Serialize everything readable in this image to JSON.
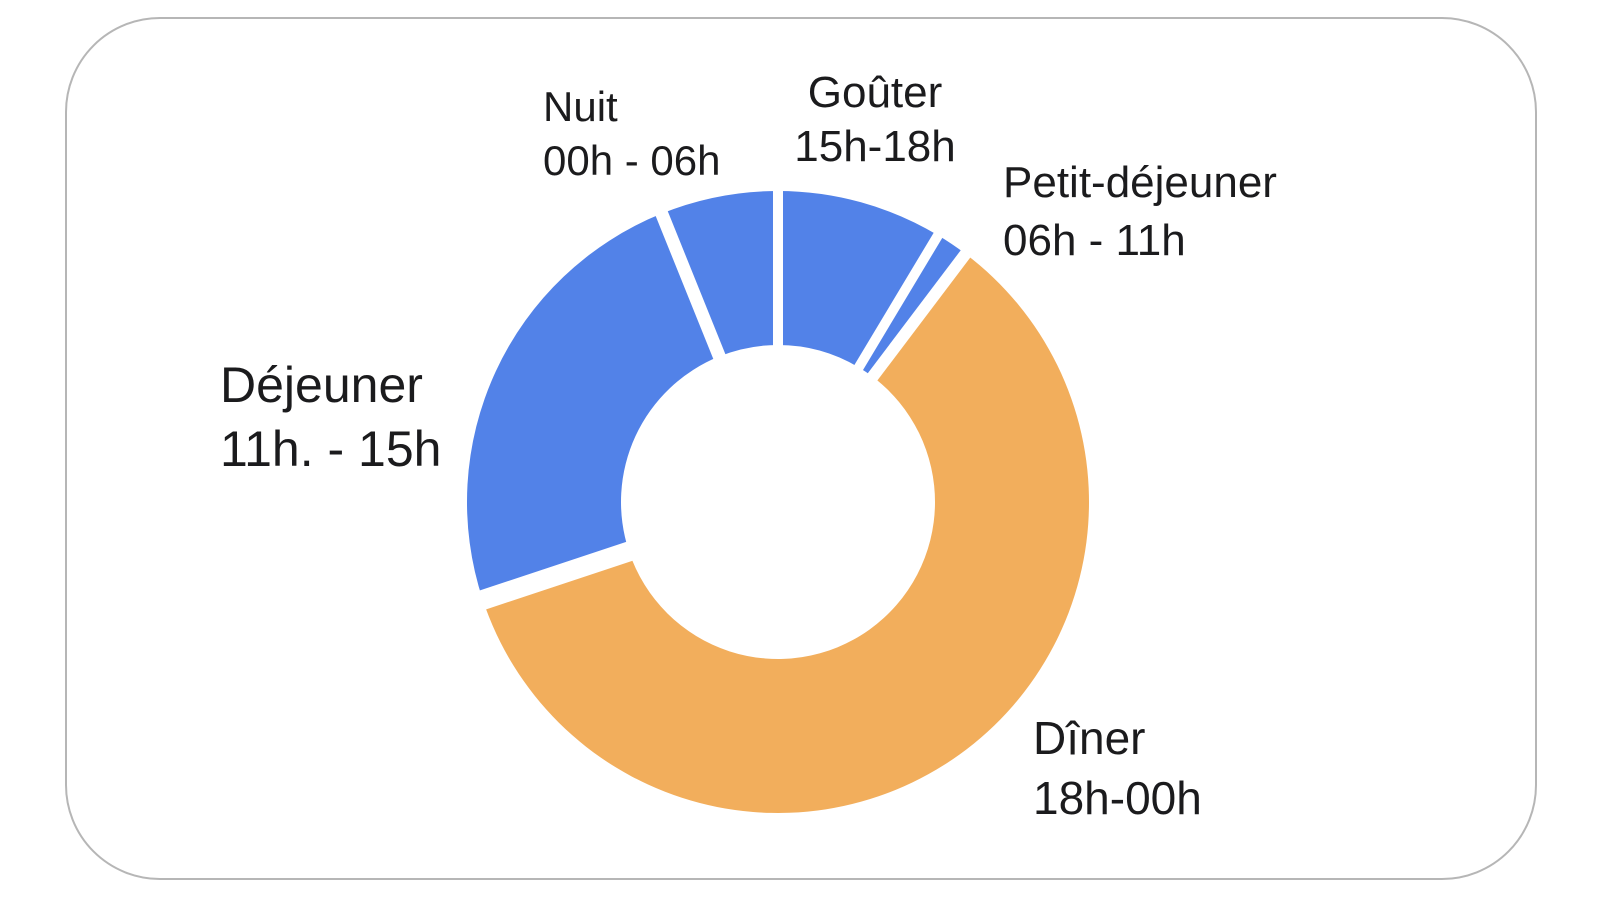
{
  "colors": {
    "slice_blue": "#5282E8",
    "slice_orange": "#F2AE5C",
    "label_text": "#1B1B1D",
    "card_border": "#B6B6B6",
    "background": "#FFFFFF"
  },
  "chart_data": {
    "type": "pie",
    "variant": "donut",
    "inner_radius_ratio": 0.5,
    "start_angle_deg": 0,
    "clockwise": true,
    "legend_position": "none",
    "segments": [
      {
        "id": "gouter",
        "name": "Goûter",
        "time_range": "15h-18h",
        "value_pct": 8.6,
        "color": "#5282E8"
      },
      {
        "id": "petit-dejeuner",
        "name": "Petit-déjeuner",
        "time_range": "06h - 11h",
        "value_pct": 1.7,
        "color": "#5282E8"
      },
      {
        "id": "diner",
        "name": "Dîner",
        "time_range": "18h-00h",
        "value_pct": 59.6,
        "color": "#F2AE5C"
      },
      {
        "id": "dejeuner",
        "name": "Déjeuner",
        "time_range": "11h. - 15h",
        "value_pct": 24.0,
        "color": "#5282E8"
      },
      {
        "id": "nuit",
        "name": "Nuit",
        "time_range": "00h - 06h",
        "value_pct": 6.1,
        "color": "#5282E8"
      }
    ]
  }
}
